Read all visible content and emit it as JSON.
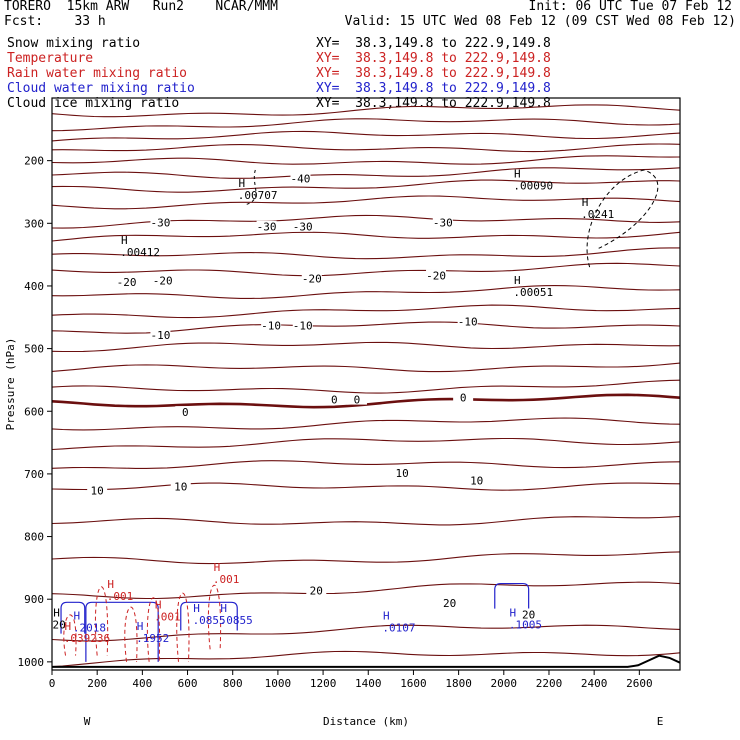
{
  "header": {
    "line1_left": "TORERO  15km ARW   Run2    NCAR/MMM",
    "line1_right": "Init: 06 UTC Tue 07 Feb 12",
    "line2_left": "Fcst:    33 h",
    "line2_right": "Valid: 15 UTC Wed 08 Feb 12 (09 CST Wed 08 Feb 12)"
  },
  "variables": [
    {
      "name": "Snow mixing ratio",
      "xy": "XY=  38.3,149.8 to 222.9,149.8",
      "color": "#000000"
    },
    {
      "name": "Temperature",
      "xy": "XY=  38.3,149.8 to 222.9,149.8",
      "color": "#cc2222"
    },
    {
      "name": "Rain water mixing ratio",
      "xy": "XY=  38.3,149.8 to 222.9,149.8",
      "color": "#cc2222"
    },
    {
      "name": "Cloud water mixing ratio",
      "xy": "XY=  38.3,149.8 to 222.9,149.8",
      "color": "#2222cc"
    },
    {
      "name": "Cloud ice mixing ratio",
      "xy": "XY=  38.3,149.8 to 222.9,149.8",
      "color": "#000000"
    }
  ],
  "chart_data": {
    "type": "contour",
    "xlabel": "Distance (km)",
    "ylabel": "Pressure (hPa)",
    "xlim": [
      0,
      2780
    ],
    "ylim": [
      1013,
      100
    ],
    "x_ticks": [
      0,
      200,
      400,
      600,
      800,
      1000,
      1200,
      1400,
      1600,
      1800,
      2000,
      2200,
      2400,
      2600
    ],
    "y_ticks": [
      200,
      300,
      400,
      500,
      600,
      700,
      800,
      900,
      1000
    ],
    "y_scale": "linear",
    "left_end_label": "W",
    "right_end_label": "E",
    "temperature_contours": [
      {
        "p": 125
      },
      {
        "p": 145
      },
      {
        "p": 165
      },
      {
        "p": 185
      },
      {
        "p": 205
      },
      {
        "p": 225
      },
      {
        "p": 245,
        "label": "-40"
      },
      {
        "p": 270
      },
      {
        "p": 300,
        "label": "-30"
      },
      {
        "p": 325
      },
      {
        "p": 355,
        "label": "-20"
      },
      {
        "p": 380
      },
      {
        "p": 415
      },
      {
        "p": 445,
        "label": "-10"
      },
      {
        "p": 470
      },
      {
        "p": 500
      },
      {
        "p": 535
      },
      {
        "p": 568
      },
      {
        "p": 590,
        "label": "0",
        "bold": true
      },
      {
        "p": 625
      },
      {
        "p": 655
      },
      {
        "p": 690,
        "label": "10"
      },
      {
        "p": 725
      },
      {
        "p": 780
      },
      {
        "p": 840
      },
      {
        "p": 895,
        "label": "20"
      },
      {
        "p": 960
      },
      {
        "p": 1000
      }
    ],
    "contour_labels": [
      {
        "x": 1100,
        "p": 230,
        "text": "-40"
      },
      {
        "x": 480,
        "p": 300,
        "text": "-30"
      },
      {
        "x": 950,
        "p": 307,
        "text": "-30"
      },
      {
        "x": 1110,
        "p": 307,
        "text": "-30"
      },
      {
        "x": 1730,
        "p": 300,
        "text": "-30"
      },
      {
        "x": 330,
        "p": 395,
        "text": "-20"
      },
      {
        "x": 490,
        "p": 393,
        "text": "-20"
      },
      {
        "x": 1150,
        "p": 390,
        "text": "-20"
      },
      {
        "x": 1700,
        "p": 385,
        "text": "-20"
      },
      {
        "x": 480,
        "p": 480,
        "text": "-10"
      },
      {
        "x": 970,
        "p": 465,
        "text": "-10"
      },
      {
        "x": 1110,
        "p": 465,
        "text": "-10"
      },
      {
        "x": 1840,
        "p": 458,
        "text": "-10"
      },
      {
        "x": 590,
        "p": 603,
        "text": "0"
      },
      {
        "x": 1250,
        "p": 583,
        "text": "0"
      },
      {
        "x": 1350,
        "p": 583,
        "text": "0"
      },
      {
        "x": 1820,
        "p": 580,
        "text": "0"
      },
      {
        "x": 200,
        "p": 728,
        "text": "10"
      },
      {
        "x": 570,
        "p": 722,
        "text": "10"
      },
      {
        "x": 1550,
        "p": 700,
        "text": "10"
      },
      {
        "x": 1880,
        "p": 712,
        "text": "10"
      },
      {
        "x": 1170,
        "p": 888,
        "text": "20"
      },
      {
        "x": 1760,
        "p": 908,
        "text": "20"
      },
      {
        "x": 2110,
        "p": 926,
        "text": "20"
      }
    ],
    "maxima": [
      {
        "x": 840,
        "p": 255,
        "text": ".00707",
        "color": "#000000"
      },
      {
        "x": 320,
        "p": 346,
        "text": ".00412",
        "color": "#000000"
      },
      {
        "x": 2060,
        "p": 240,
        "text": ".00090",
        "color": "#000000"
      },
      {
        "x": 2360,
        "p": 285,
        "text": ".0241",
        "color": "#000000"
      },
      {
        "x": 2060,
        "p": 410,
        "text": ".00051",
        "color": "#000000"
      },
      {
        "x": 1480,
        "p": 945,
        "text": ".0107",
        "color": "#2222cc"
      },
      {
        "x": 2040,
        "p": 940,
        "text": ".1005",
        "color": "#2222cc"
      },
      {
        "x": 110,
        "p": 945,
        "text": ".2018",
        "color": "#2222cc"
      },
      {
        "x": 390,
        "p": 962,
        "text": ".1952",
        "color": "#2222cc"
      },
      {
        "x": 70,
        "p": 962,
        "text": ".039236",
        "color": "#cc2222"
      },
      {
        "x": 640,
        "p": 933,
        "text": ".0855",
        "color": "#2222cc"
      },
      {
        "x": 760,
        "p": 933,
        "text": ".0855",
        "color": "#2222cc"
      },
      {
        "x": 470,
        "p": 928,
        "text": ".001",
        "color": "#cc2222"
      },
      {
        "x": 260,
        "p": 895,
        "text": ".001",
        "color": "#cc2222"
      },
      {
        "x": 730,
        "p": 868,
        "text": ".001",
        "color": "#cc2222"
      },
      {
        "x": 20,
        "p": 940,
        "text": "20",
        "color": "#000000"
      }
    ]
  }
}
